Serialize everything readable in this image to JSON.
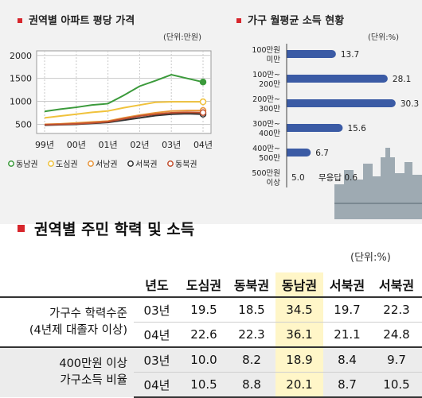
{
  "left_chart": {
    "title": "권역별 아파트 평당 가격",
    "unit": "(단위:만원)"
  },
  "right_chart": {
    "title": "가구 월평균 소득 현황",
    "unit": "(단위:%)"
  },
  "table_section": {
    "title": "권역별 주민 학력 및 소득",
    "unit": "(단위:%)",
    "headers": [
      "년도",
      "도심권",
      "동북권",
      "동남권",
      "서북권",
      "서북권"
    ],
    "groups": [
      {
        "label_line1": "가구수 학력수준",
        "label_line2": "(4년제 대졸자 이상)",
        "rows": [
          {
            "year": "03년",
            "values": [
              "19.5",
              "18.5",
              "34.5",
              "19.7",
              "22.3"
            ]
          },
          {
            "year": "04년",
            "values": [
              "22.6",
              "22.3",
              "36.1",
              "21.1",
              "24.8"
            ]
          }
        ]
      },
      {
        "label_line1": "400만원 이상",
        "label_line2": "가구소득 비율",
        "rows": [
          {
            "year": "03년",
            "values": [
              "10.0",
              "8.2",
              "18.9",
              "8.4",
              "9.7"
            ]
          },
          {
            "year": "04년",
            "values": [
              "10.5",
              "8.8",
              "20.1",
              "8.7",
              "10.5"
            ]
          }
        ]
      }
    ]
  },
  "colors": {
    "accent_red": "#d7262c",
    "bar_blue": "#3b5ba5",
    "east_south": "#3b9a3b",
    "downtown": "#f0c23c",
    "south_west": "#e8953a",
    "north_west": "#333333",
    "north_east": "#c2502f"
  },
  "chart_data": [
    {
      "type": "line",
      "title": "권역별 아파트 평당 가격",
      "ylabel": "(단위:만원)",
      "categories": [
        "99년",
        "00년",
        "01년",
        "02년",
        "03년",
        "04년"
      ],
      "x": [
        0,
        0.5,
        1,
        1.5,
        2,
        2.5,
        3,
        3.5,
        4,
        4.5,
        5
      ],
      "yticks": [
        500,
        1000,
        1500,
        2000
      ],
      "ylim": [
        300,
        2100
      ],
      "grid": true,
      "legend_position": "bottom",
      "series": [
        {
          "name": "동남권",
          "color": "#3b9a3b",
          "marker": "filled",
          "values": [
            780,
            830,
            870,
            920,
            950,
            1130,
            1330,
            1450,
            1580,
            1500,
            1420
          ]
        },
        {
          "name": "도심권",
          "color": "#f0c23c",
          "marker": "open",
          "values": [
            640,
            680,
            720,
            760,
            790,
            860,
            920,
            980,
            990,
            990,
            990
          ]
        },
        {
          "name": "서남권",
          "color": "#e8953a",
          "marker": "open",
          "values": [
            500,
            510,
            530,
            550,
            570,
            640,
            700,
            750,
            790,
            800,
            800
          ]
        },
        {
          "name": "서북권",
          "color": "#333333",
          "marker": "open",
          "values": [
            480,
            490,
            500,
            520,
            540,
            590,
            640,
            690,
            720,
            730,
            720
          ]
        },
        {
          "name": "동북권",
          "color": "#c2502f",
          "marker": "open",
          "values": [
            490,
            500,
            510,
            530,
            555,
            620,
            680,
            720,
            750,
            760,
            755
          ]
        }
      ]
    },
    {
      "type": "bar",
      "orientation": "horizontal",
      "title": "가구 월평균 소득 현황",
      "unit": "(단위:%)",
      "categories": [
        {
          "line1": "100만원",
          "line2": "미만"
        },
        {
          "line1": "100만~",
          "line2": "200만"
        },
        {
          "line1": "200만~",
          "line2": "300만"
        },
        {
          "line1": "300만~",
          "line2": "400만"
        },
        {
          "line1": "400만~",
          "line2": "500만"
        },
        {
          "line1": "500만원",
          "line2": "이상"
        }
      ],
      "values": [
        13.7,
        28.1,
        30.3,
        15.6,
        6.7,
        5.0
      ],
      "value_labels": [
        "13.7",
        "28.1",
        "30.3",
        "15.6",
        "6.7",
        "5.0"
      ],
      "extra_label": "무응답 0.6",
      "xlim": [
        0,
        31
      ]
    }
  ]
}
